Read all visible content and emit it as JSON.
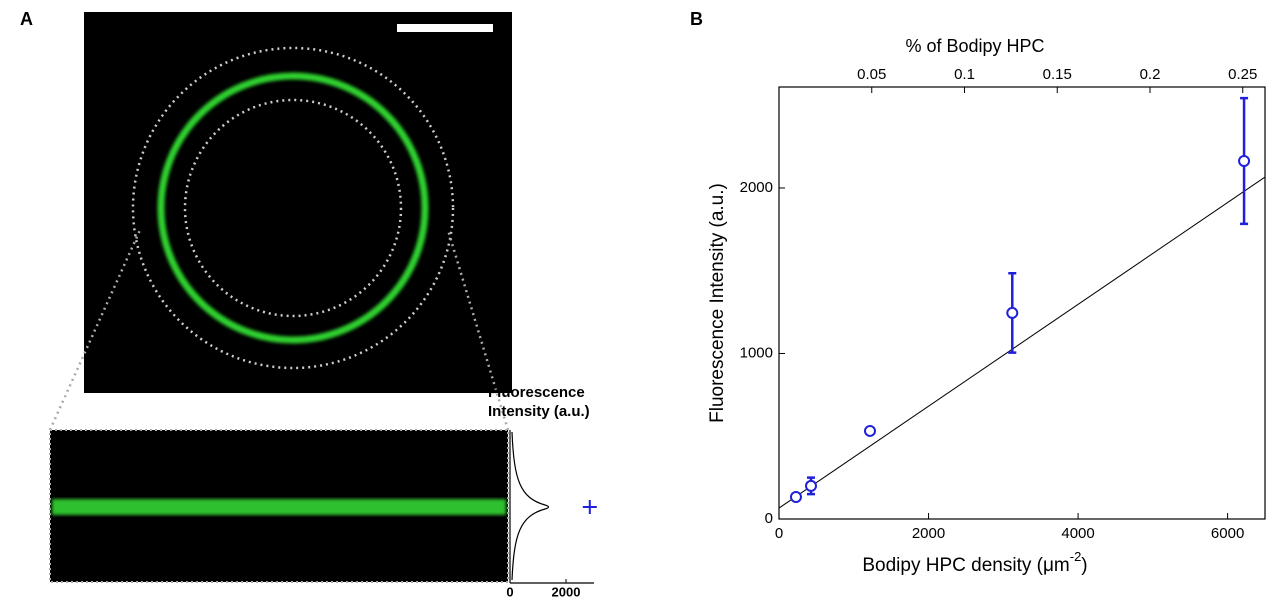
{
  "chart_data": [
    {
      "type": "profile",
      "panel_label": "A",
      "ylabel": "Fluorescence Intensity (a.u.)",
      "xlim": [
        0,
        3000
      ],
      "xticks": [
        0,
        2000
      ],
      "peak": 2850,
      "color": "#1f1fdc"
    },
    {
      "type": "scatter",
      "panel_label": "B",
      "x2label": "% of Bodipy HPC",
      "x2lim": [
        0,
        0.262
      ],
      "x2ticks": [
        0.05,
        0.1,
        0.15,
        0.2,
        0.25
      ],
      "ylabel": "Fluorescence Intensity (a.u.)",
      "xlabel": "Bodipy HPC density (μm",
      "xlabel_sup": "-2",
      "xlabel_end": ")",
      "xlim": [
        0,
        6500
      ],
      "xticks": [
        0,
        2000,
        4000,
        6000
      ],
      "ylim": [
        0,
        2610
      ],
      "yticks": [
        0,
        1000,
        2000
      ],
      "x": [
        227,
        428,
        1217,
        3120,
        6220
      ],
      "values": [
        133,
        200,
        532,
        1245,
        2163
      ],
      "errors": [
        null,
        50,
        null,
        240,
        380
      ],
      "color": "#1f1fdc",
      "fit": {
        "x": [
          0,
          6500
        ],
        "values": [
          66,
          2066
        ],
        "color": "#000000"
      }
    }
  ]
}
